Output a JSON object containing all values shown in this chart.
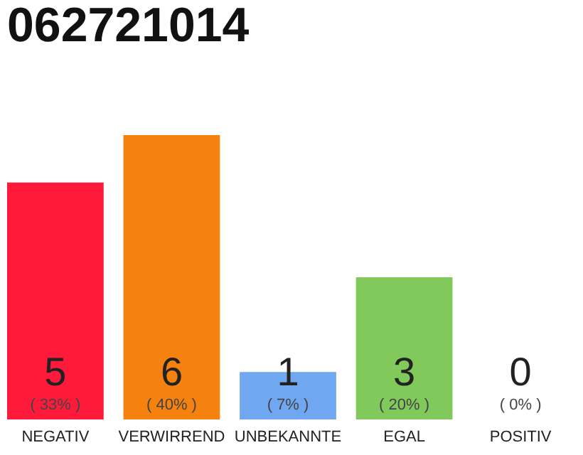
{
  "chart_data": {
    "type": "bar",
    "title": "062721014",
    "categories": [
      "NEGATIV",
      "VERWIRREND",
      "UNBEKANNTE",
      "EGAL",
      "POSITIV"
    ],
    "values": [
      5,
      6,
      1,
      3,
      0
    ],
    "colors": [
      "#ff1a3c",
      "#f5820f",
      "#6fa8f0",
      "#80c95a",
      "#cccccc"
    ],
    "data_labels": true,
    "annotations": [
      "( 33% )",
      "( 40% )",
      "( 7% )",
      "( 20% )",
      "( 0% )"
    ],
    "tick_labels": "x",
    "grid": false
  }
}
